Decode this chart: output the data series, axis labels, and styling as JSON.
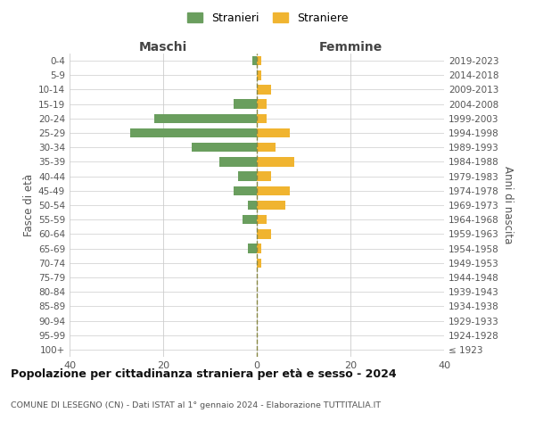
{
  "age_groups": [
    "100+",
    "95-99",
    "90-94",
    "85-89",
    "80-84",
    "75-79",
    "70-74",
    "65-69",
    "60-64",
    "55-59",
    "50-54",
    "45-49",
    "40-44",
    "35-39",
    "30-34",
    "25-29",
    "20-24",
    "15-19",
    "10-14",
    "5-9",
    "0-4"
  ],
  "birth_years": [
    "≤ 1923",
    "1924-1928",
    "1929-1933",
    "1934-1938",
    "1939-1943",
    "1944-1948",
    "1949-1953",
    "1954-1958",
    "1959-1963",
    "1964-1968",
    "1969-1973",
    "1974-1978",
    "1979-1983",
    "1984-1988",
    "1989-1993",
    "1994-1998",
    "1999-2003",
    "2004-2008",
    "2009-2013",
    "2014-2018",
    "2019-2023"
  ],
  "stranieri_maschi": [
    0,
    0,
    0,
    0,
    0,
    0,
    0,
    2,
    0,
    3,
    2,
    5,
    4,
    8,
    14,
    27,
    22,
    5,
    0,
    0,
    1
  ],
  "straniere_femmine": [
    0,
    0,
    0,
    0,
    0,
    0,
    1,
    1,
    3,
    2,
    6,
    7,
    3,
    8,
    4,
    7,
    2,
    2,
    3,
    1,
    1
  ],
  "color_maschi": "#6a9e5e",
  "color_femmine": "#f0b430",
  "grid_color": "#cccccc",
  "title": "Popolazione per cittadinanza straniera per età e sesso - 2024",
  "subtitle": "COMUNE DI LESEGNO (CN) - Dati ISTAT al 1° gennaio 2024 - Elaborazione TUTTITALIA.IT",
  "xlabel_left": "Maschi",
  "xlabel_right": "Femmine",
  "ylabel_left": "Fasce di età",
  "ylabel_right": "Anni di nascita",
  "legend_stranieri": "Stranieri",
  "legend_straniere": "Straniere",
  "xlim": 40,
  "dashed_line_color": "#888844"
}
